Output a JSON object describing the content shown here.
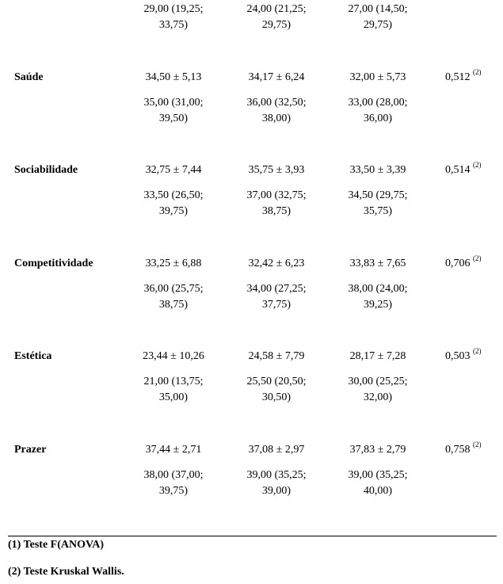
{
  "top": {
    "c1": "29,00 (19,25; 33,75)",
    "c2": "24,00 (21,25; 29,75)",
    "c3": "27,00 (14,50; 29,75)"
  },
  "rows": [
    {
      "label": "Saúde",
      "mean": [
        "34,50 ± 5,13",
        "34,17 ± 6,24",
        "32,00 ± 5,73"
      ],
      "median": [
        "35,00 (31,00; 39,50)",
        "36,00 (32,50; 38,00)",
        "33,00 (28,00; 36,00)"
      ],
      "p": "0,512",
      "p_ref": "(2)"
    },
    {
      "label": "Sociabilidade",
      "mean": [
        "32,75 ± 7,44",
        "35,75 ± 3,93",
        "33,50 ± 3,39"
      ],
      "median": [
        "33,50 (26,50; 39,75)",
        "37,00 (32,75; 38,75)",
        "34,50 (29,75; 35,75)"
      ],
      "p": "0,514",
      "p_ref": "(2)"
    },
    {
      "label": "Competitividade",
      "mean": [
        "33,25 ± 6,88",
        "32,42 ± 6,23",
        "33,83 ± 7,65"
      ],
      "median": [
        "36,00 (25,75; 38,75)",
        "34,00 (27,25; 37,75)",
        "38,00 (24,00; 39,25)"
      ],
      "p": "0,706",
      "p_ref": "(2)"
    },
    {
      "label": "Estética",
      "mean": [
        "23,44 ± 10,26",
        "24,58 ± 7,79",
        "28,17 ± 7,28"
      ],
      "median": [
        "21,00 (13,75; 35,00)",
        "25,50 (20,50; 30,50)",
        "30,00 (25,25; 32,00)"
      ],
      "p": "0,503",
      "p_ref": "(2)"
    },
    {
      "label": "Prazer",
      "mean": [
        "37,44 ± 2,71",
        "37,08 ± 2,97",
        "37,83 ± 2,79"
      ],
      "median": [
        "38,00 (37,00; 39,75)",
        "39,00 (35,25; 39,00)",
        "39,00 (35,25; 40,00)"
      ],
      "p": "0,758",
      "p_ref": "(2)"
    }
  ],
  "notes": [
    "(1) Teste F(ANOVA)",
    "(2) Teste Kruskal Wallis."
  ]
}
